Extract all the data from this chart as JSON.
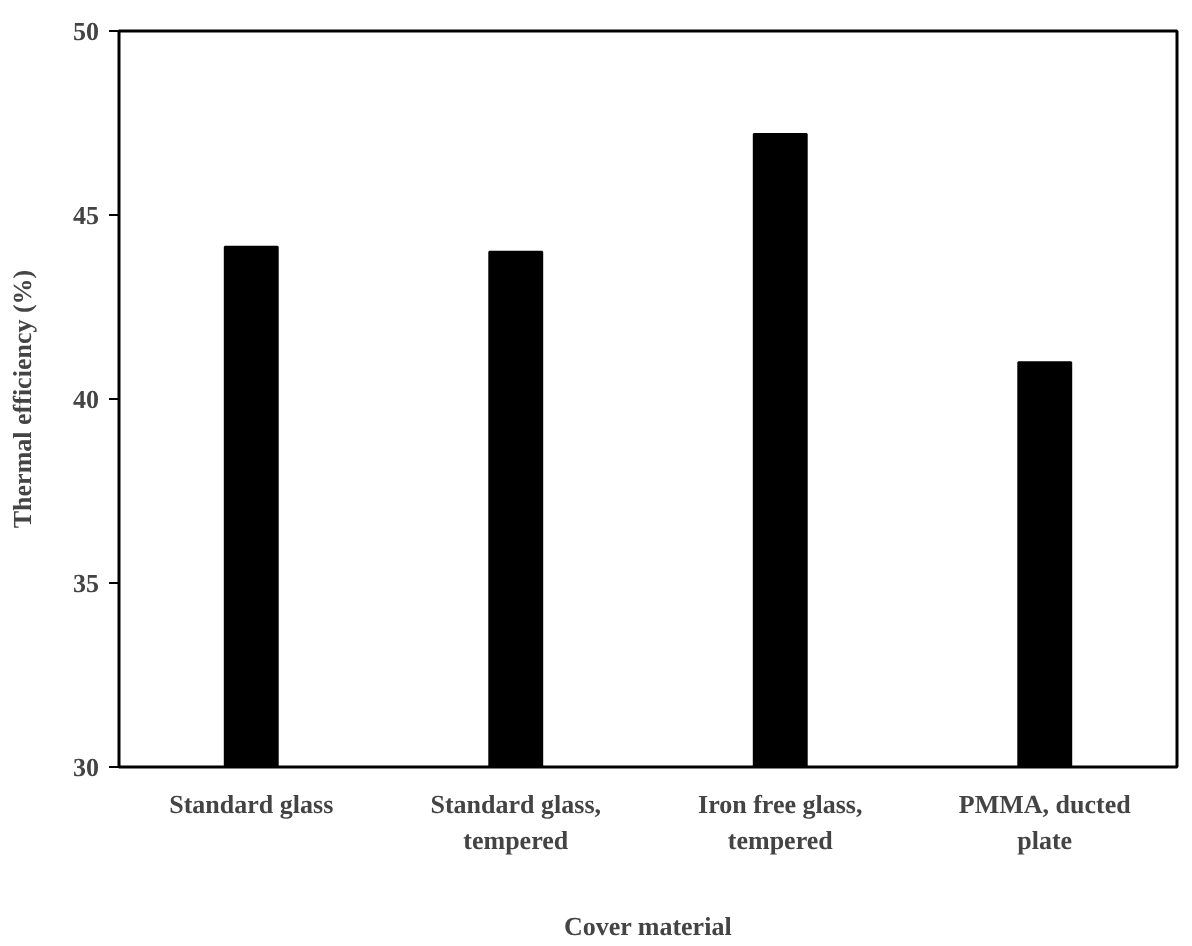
{
  "chart_data": {
    "type": "bar",
    "xlabel": "Cover material",
    "ylabel": "Thermal efficiency (%)",
    "categories": [
      "Standard glass",
      "Standard glass, tempered",
      "Iron free glass, tempered",
      "PMMA, ducted plate"
    ],
    "values": [
      44.14,
      44.0,
      47.2,
      41.0
    ],
    "color": "#000000",
    "ylim": [
      30,
      50
    ],
    "yticks": [
      30,
      35,
      40,
      45,
      50
    ],
    "grid": false
  }
}
